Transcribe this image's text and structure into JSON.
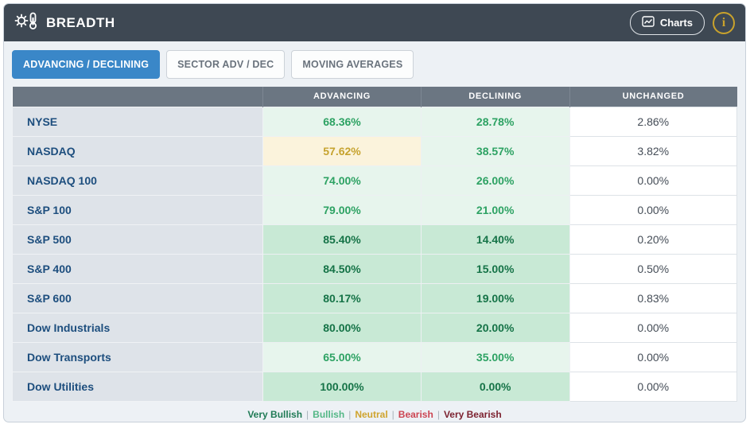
{
  "header": {
    "title": "BREADTH",
    "charts_label": "Charts",
    "info_label": "i"
  },
  "tabs": [
    {
      "label": "ADVANCING / DECLINING",
      "active": true
    },
    {
      "label": "SECTOR ADV / DEC",
      "active": false
    },
    {
      "label": "MOVING AVERAGES",
      "active": false
    }
  ],
  "table": {
    "headers": {
      "advancing": "ADVANCING",
      "declining": "DECLINING",
      "unchanged": "UNCHANGED"
    },
    "rows": [
      {
        "name": "NYSE",
        "advancing": {
          "value": "68.36%",
          "sentiment": "bullish"
        },
        "declining": {
          "value": "28.78%",
          "sentiment": "bullish"
        },
        "unchanged": "2.86%"
      },
      {
        "name": "NASDAQ",
        "advancing": {
          "value": "57.62%",
          "sentiment": "neutral"
        },
        "declining": {
          "value": "38.57%",
          "sentiment": "bullish"
        },
        "unchanged": "3.82%"
      },
      {
        "name": "NASDAQ 100",
        "advancing": {
          "value": "74.00%",
          "sentiment": "bullish"
        },
        "declining": {
          "value": "26.00%",
          "sentiment": "bullish"
        },
        "unchanged": "0.00%"
      },
      {
        "name": "S&P 100",
        "advancing": {
          "value": "79.00%",
          "sentiment": "bullish"
        },
        "declining": {
          "value": "21.00%",
          "sentiment": "bullish"
        },
        "unchanged": "0.00%"
      },
      {
        "name": "S&P 500",
        "advancing": {
          "value": "85.40%",
          "sentiment": "very_bullish"
        },
        "declining": {
          "value": "14.40%",
          "sentiment": "very_bullish"
        },
        "unchanged": "0.20%"
      },
      {
        "name": "S&P 400",
        "advancing": {
          "value": "84.50%",
          "sentiment": "very_bullish"
        },
        "declining": {
          "value": "15.00%",
          "sentiment": "very_bullish"
        },
        "unchanged": "0.50%"
      },
      {
        "name": "S&P 600",
        "advancing": {
          "value": "80.17%",
          "sentiment": "very_bullish"
        },
        "declining": {
          "value": "19.00%",
          "sentiment": "very_bullish"
        },
        "unchanged": "0.83%"
      },
      {
        "name": "Dow Industrials",
        "advancing": {
          "value": "80.00%",
          "sentiment": "very_bullish"
        },
        "declining": {
          "value": "20.00%",
          "sentiment": "very_bullish"
        },
        "unchanged": "0.00%"
      },
      {
        "name": "Dow Transports",
        "advancing": {
          "value": "65.00%",
          "sentiment": "bullish"
        },
        "declining": {
          "value": "35.00%",
          "sentiment": "bullish"
        },
        "unchanged": "0.00%"
      },
      {
        "name": "Dow Utilities",
        "advancing": {
          "value": "100.00%",
          "sentiment": "very_bullish"
        },
        "declining": {
          "value": "0.00%",
          "sentiment": "very_bullish"
        },
        "unchanged": "0.00%"
      }
    ]
  },
  "legend": {
    "separator": "|",
    "items": [
      {
        "label": "Very Bullish",
        "color": "#1f7a55"
      },
      {
        "label": "Bullish",
        "color": "#53b786"
      },
      {
        "label": "Neutral",
        "color": "#cfa42e"
      },
      {
        "label": "Bearish",
        "color": "#cc4552"
      },
      {
        "label": "Very Bearish",
        "color": "#7c2230"
      }
    ]
  },
  "colors": {
    "header_bg": "#3e4853",
    "active_tab": "#3a87c8",
    "table_head_bg": "#6b7682",
    "very_bullish_bg": "#c8e9d5",
    "bullish_bg": "#e7f5ed",
    "neutral_bg": "#fbf3dc"
  }
}
